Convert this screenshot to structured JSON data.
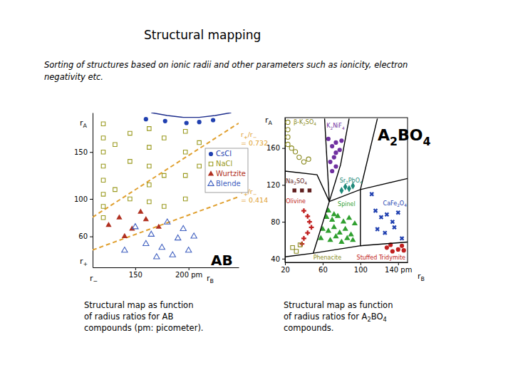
{
  "title": "Structural mapping",
  "subtitle": [
    "Sorting of structures based on ionic radii and other parameters such as ionicity, electron",
    "negativity etc."
  ],
  "chart_data": [
    {
      "type": "scatter",
      "title": "AB",
      "caption": [
        "Structural map as function",
        "of radius ratios for AB",
        "compounds (pm: picometer)."
      ],
      "xlabel": "rB",
      "xlabel_left": "r−",
      "ylabel": "rA",
      "ylabel_lower": "r+",
      "xlim": [
        110,
        247
      ],
      "ylim": [
        27,
        192
      ],
      "xticks": [
        150,
        {
          "value": 200,
          "label": "200 pm"
        }
      ],
      "yticks": [
        60,
        100,
        150
      ],
      "series": [
        {
          "name": "CsCl",
          "color": "#2040b0",
          "marker": "circle",
          "x": [
            160,
            178,
            198,
            210,
            223
          ],
          "values": [
            185,
            183,
            181,
            182,
            184
          ]
        },
        {
          "name": "NaCl",
          "color": "#9a9a20",
          "marker": "square-open",
          "x": [
            120,
            120,
            120,
            120,
            120,
            120,
            120,
            120,
            131,
            131,
            145,
            145,
            145,
            163,
            163,
            163,
            163,
            163,
            177,
            177,
            177,
            197,
            197,
            197,
            197,
            210,
            210
          ],
          "values": [
            180,
            165,
            150,
            135,
            120,
            105,
            92,
            80,
            158,
            110,
            170,
            140,
            100,
            175,
            155,
            135,
            115,
            97,
            165,
            125,
            92,
            172,
            150,
            125,
            100,
            160,
            135
          ]
        },
        {
          "name": "Wurtzite",
          "color": "#b03020",
          "marker": "triangle",
          "x": [
            125,
            135,
            147,
            160,
            140,
            172,
            155
          ],
          "values": [
            72,
            80,
            68,
            78,
            60,
            70,
            86
          ]
        },
        {
          "name": "Blende",
          "color": "#4060c0",
          "marker": "triangle-open",
          "x": [
            150,
            165,
            180,
            195,
            160,
            175,
            190,
            200,
            170,
            185,
            205,
            140
          ],
          "values": [
            70,
            62,
            75,
            68,
            52,
            48,
            58,
            45,
            38,
            40,
            60,
            45
          ]
        },
        {
          "type": "line",
          "color": "#1a2a8a",
          "line_style": "solid",
          "x": [
            165,
            180,
            195,
            210,
            225,
            240
          ],
          "values": [
            192,
            189,
            187,
            187,
            189,
            192
          ]
        }
      ],
      "ratio_lines": [
        {
          "value": 0.732,
          "label": [
            "r+/r−",
            "= 0.732"
          ],
          "color": "#e0a030"
        },
        {
          "value": 0.414,
          "label": [
            "r+/r−",
            "= 0.414"
          ],
          "color": "#e0a030"
        }
      ]
    },
    {
      "type": "scatter",
      "title": "A2BO4",
      "caption": [
        "Structural map as function",
        "of radius ratios for A2BO4",
        "compounds."
      ],
      "xlabel": "rB",
      "ylabel": "rA",
      "xlim": [
        20,
        150
      ],
      "ylim": [
        36,
        193
      ],
      "xticks": [
        20,
        60,
        100,
        {
          "value": 140,
          "label": "140 pm"
        }
      ],
      "yticks": [
        40,
        80,
        120,
        160
      ],
      "series": [
        {
          "color": "#8a8a20",
          "marker": "circle-open",
          "x": [
            23,
            23,
            23,
            23,
            27,
            31,
            35,
            40,
            45
          ],
          "values": [
            188,
            180,
            172,
            164,
            160,
            156,
            150,
            145,
            148
          ]
        },
        {
          "color": "#7030a0",
          "marker": "circle",
          "x": [
            66,
            70,
            74,
            78,
            72,
            68,
            80,
            74,
            74,
            70
          ],
          "values": [
            170,
            162,
            166,
            158,
            150,
            145,
            168,
            140,
            155,
            135
          ]
        },
        {
          "color": "#208a7a",
          "marker": "diamond",
          "x": [
            80,
            84,
            88,
            92
          ],
          "values": [
            114,
            118,
            116,
            119
          ]
        },
        {
          "color": "#602020",
          "marker": "square",
          "x": [
            30,
            38,
            46
          ],
          "values": [
            114,
            114,
            114
          ]
        },
        {
          "color": "#c02020",
          "marker": "cross",
          "x": [
            40,
            44,
            46,
            48,
            44,
            40,
            38
          ],
          "values": [
            92,
            86,
            80,
            74,
            68,
            62,
            56
          ]
        },
        {
          "color": "#30a030",
          "marker": "triangle",
          "x": [
            66,
            72,
            64,
            70,
            76,
            82,
            88,
            94,
            60,
            66,
            72,
            78,
            84,
            90,
            58,
            68,
            80,
            92,
            74,
            86
          ],
          "values": [
            92,
            88,
            85,
            82,
            86,
            80,
            84,
            78,
            72,
            70,
            74,
            68,
            72,
            66,
            62,
            60,
            58,
            60,
            64,
            62
          ]
        },
        {
          "color": "#2040b0",
          "marker": "x",
          "x": [
            112,
            116,
            122,
            128,
            134,
            140,
            118,
            126,
            136,
            144
          ],
          "values": [
            110,
            92,
            85,
            88,
            80,
            90,
            72,
            68,
            74,
            62
          ]
        },
        {
          "color": "#8a8a20",
          "marker": "square-open",
          "x": [
            28,
            32,
            36
          ],
          "values": [
            52,
            48,
            55
          ]
        },
        {
          "color": "#c02020",
          "marker": "circle",
          "x": [
            128,
            134,
            140,
            146,
            132,
            144
          ],
          "values": [
            52,
            48,
            50,
            49,
            55,
            54
          ]
        },
        {
          "type": "line",
          "color": "#000000",
          "line_style": "solid",
          "x": [
            62,
            67
          ],
          "values": [
            192,
            102
          ]
        },
        {
          "type": "line",
          "color": "#000000",
          "line_style": "solid",
          "x": [
            88,
            79,
            67
          ],
          "values": [
            192,
            142,
            102
          ]
        },
        {
          "type": "line",
          "color": "#000000",
          "line_style": "solid",
          "x": [
            20,
            54,
            67
          ],
          "values": [
            135,
            131,
            102
          ]
        },
        {
          "type": "line",
          "color": "#000000",
          "line_style": "solid",
          "x": [
            67,
            100,
            118
          ],
          "values": [
            102,
            115,
            192
          ]
        },
        {
          "type": "line",
          "color": "#000000",
          "line_style": "solid",
          "x": [
            100,
            150
          ],
          "values": [
            115,
            127
          ]
        },
        {
          "type": "line",
          "color": "#000000",
          "line_style": "solid",
          "x": [
            67,
            50,
            20
          ],
          "values": [
            102,
            46,
            42
          ]
        },
        {
          "type": "line",
          "color": "#000000",
          "line_style": "solid",
          "x": [
            50,
            100,
            100
          ],
          "values": [
            46,
            54,
            115
          ]
        },
        {
          "type": "line",
          "color": "#000000",
          "line_style": "solid",
          "x": [
            100,
            150
          ],
          "values": [
            54,
            58
          ]
        }
      ],
      "annotations": [
        {
          "text": "β-K2SO4",
          "x": 29,
          "y": 186,
          "color": "#8a8a20"
        },
        {
          "text": "K2NiF4",
          "x": 64,
          "y": 182,
          "color": "#7030a0"
        },
        {
          "text": "Sr2PbO4",
          "x": 78,
          "y": 123,
          "color": "#208a7a"
        },
        {
          "text": "CaFe2O4",
          "x": 124,
          "y": 98,
          "color": "#2040b0"
        },
        {
          "text": "Na2SO4",
          "x": 21,
          "y": 122,
          "color": "#602020"
        },
        {
          "text": "Olivine",
          "x": 21,
          "y": 100,
          "color": "#c02020"
        },
        {
          "text": "Spinel",
          "x": 76,
          "y": 97,
          "color": "#30a030"
        },
        {
          "text": "Phenacite",
          "x": 50,
          "y": 39,
          "color": "#8a8a20"
        },
        {
          "text": "Stuffed Tridymite",
          "x": 96,
          "y": 39,
          "color": "#c02020"
        }
      ]
    }
  ]
}
